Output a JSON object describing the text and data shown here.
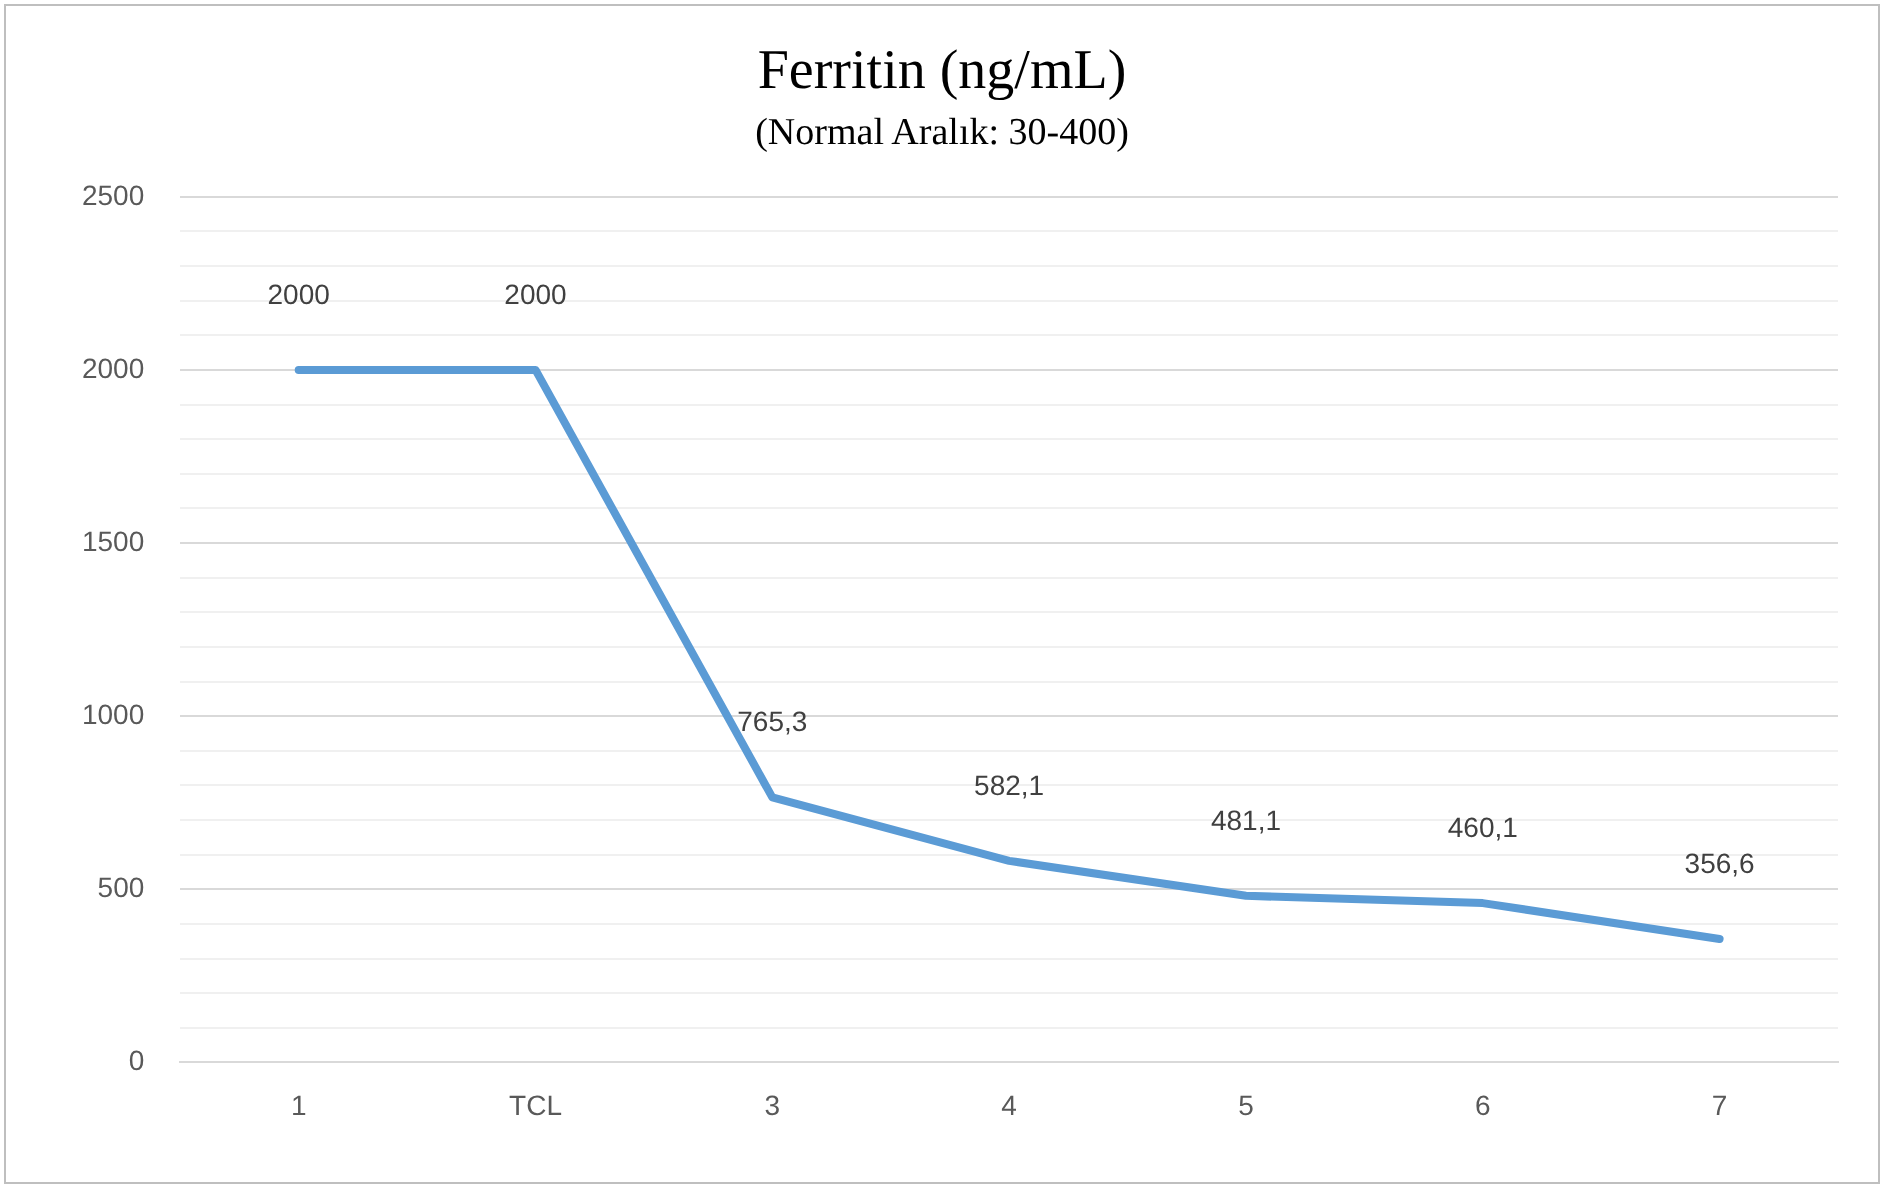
{
  "chart_data": {
    "type": "line",
    "title": "Ferritin (ng/mL)",
    "subtitle": "(Normal Aralık: 30-400)",
    "categories": [
      "1",
      "TCL",
      "3",
      "4",
      "5",
      "6",
      "7"
    ],
    "series": [
      {
        "color": "#5b9bd5",
        "values": [
          2000,
          2000,
          765.3,
          582.1,
          481.1,
          460.1,
          356.6
        ],
        "value_labels": [
          "2000",
          "2000",
          "765,3",
          "582,1",
          "481,1",
          "460,1",
          "356,6"
        ]
      }
    ],
    "ylim": [
      0,
      2500
    ],
    "yticks": [
      0,
      {
        "value": 100,
        "label": null
      },
      {
        "value": 200,
        "label": null
      },
      {
        "value": 300,
        "label": null
      },
      {
        "value": 400,
        "label": null
      },
      500,
      {
        "value": 600,
        "label": null
      },
      {
        "value": 700,
        "label": null
      },
      {
        "value": 800,
        "label": null
      },
      {
        "value": 900,
        "label": null
      },
      1000,
      {
        "value": 1100,
        "label": null
      },
      {
        "value": 1200,
        "label": null
      },
      {
        "value": 1300,
        "label": null
      },
      {
        "value": 1400,
        "label": null
      },
      1500,
      {
        "value": 1600,
        "label": null
      },
      {
        "value": 1700,
        "label": null
      },
      {
        "value": 1800,
        "label": null
      },
      {
        "value": 1900,
        "label": null
      },
      2000,
      {
        "value": 2100,
        "label": null
      },
      {
        "value": 2200,
        "label": null
      },
      {
        "value": 2300,
        "label": null
      },
      {
        "value": 2400,
        "label": null
      },
      2500
    ],
    "grid": "y",
    "legend": false,
    "marker": "none",
    "line_style": "solid"
  }
}
